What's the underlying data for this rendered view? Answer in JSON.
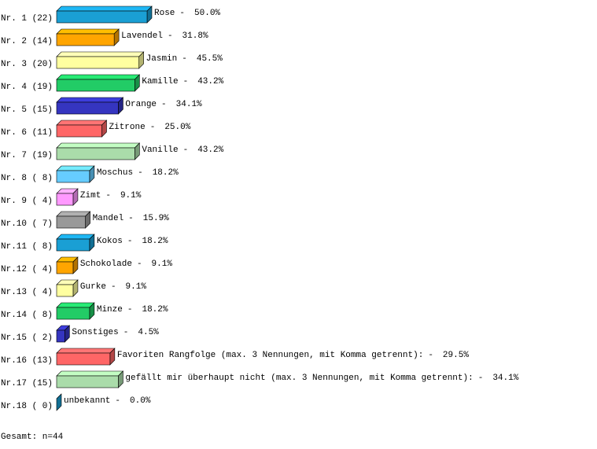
{
  "chart_data": {
    "type": "bar3d",
    "categories": [
      "Nr. 1 (22)",
      "Nr. 2 (14)",
      "Nr. 3 (20)",
      "Nr. 4 (19)",
      "Nr. 5 (15)",
      "Nr. 6 (11)",
      "Nr. 7 (19)",
      "Nr. 8 ( 8)",
      "Nr. 9 ( 4)",
      "Nr.10 ( 7)",
      "Nr.11 ( 8)",
      "Nr.12 ( 4)",
      "Nr.13 ( 4)",
      "Nr.14 ( 8)",
      "Nr.15 ( 2)",
      "Nr.16 (13)",
      "Nr.17 (15)",
      "Nr.18 ( 0)"
    ],
    "names": [
      "Rose",
      "Lavendel",
      "Jasmin",
      "Kamille",
      "Orange",
      "Zitrone",
      "Vanille",
      "Moschus",
      "Zimt",
      "Mandel",
      "Kokos",
      "Schokolade",
      "Gurke",
      "Minze",
      "Sonstiges",
      "Favoriten Rangfolge (max. 3 Nennungen, mit Komma getrennt):",
      "gefällt mir überhaupt nicht (max. 3 Nennungen, mit Komma getrennt):",
      "unbekannt"
    ],
    "separator": "-",
    "values": [
      50.0,
      31.8,
      45.5,
      43.2,
      34.1,
      25.0,
      43.2,
      18.2,
      9.1,
      15.9,
      18.2,
      9.1,
      9.1,
      18.2,
      4.5,
      29.5,
      34.1,
      0.0
    ],
    "value_labels": [
      "50.0%",
      "31.8%",
      "45.5%",
      "43.2%",
      "34.1%",
      "25.0%",
      "43.2%",
      "18.2%",
      "9.1%",
      "15.9%",
      "18.2%",
      "9.1%",
      "9.1%",
      "18.2%",
      "4.5%",
      "29.5%",
      "34.1%",
      "0.0%"
    ],
    "colors": [
      "#1a9fd4",
      "#ffa500",
      "#ffffa0",
      "#22cc66",
      "#3535c0",
      "#ff6666",
      "#aadcaa",
      "#66ccff",
      "#ff99ff",
      "#999999",
      "#1a9fd4",
      "#ffa500",
      "#ffffa0",
      "#22cc66",
      "#3535c0",
      "#ff6666",
      "#aadcaa",
      "#1a9fd4"
    ],
    "footer": "Gesamt: n=44"
  }
}
